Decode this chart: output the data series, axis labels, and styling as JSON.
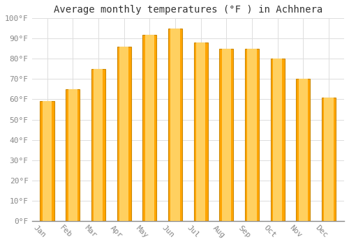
{
  "title": "Average monthly temperatures (°F ) in Achhnera",
  "months": [
    "Jan",
    "Feb",
    "Mar",
    "Apr",
    "May",
    "Jun",
    "Jul",
    "Aug",
    "Sep",
    "Oct",
    "Nov",
    "Dec"
  ],
  "values": [
    59,
    65,
    75,
    86,
    92,
    95,
    88,
    85,
    85,
    80,
    70,
    61
  ],
  "bar_color_face": "#FFA500",
  "bar_color_light": "#FFD060",
  "ylim": [
    0,
    100
  ],
  "yticks": [
    0,
    10,
    20,
    30,
    40,
    50,
    60,
    70,
    80,
    90,
    100
  ],
  "ytick_labels": [
    "0°F",
    "10°F",
    "20°F",
    "30°F",
    "40°F",
    "50°F",
    "60°F",
    "70°F",
    "80°F",
    "90°F",
    "100°F"
  ],
  "background_color": "#FFFFFF",
  "grid_color": "#DDDDDD",
  "title_fontsize": 10,
  "tick_fontsize": 8,
  "font_family": "monospace",
  "bar_width": 0.55,
  "xlabel_rotation": -45,
  "xlabel_ha": "right"
}
